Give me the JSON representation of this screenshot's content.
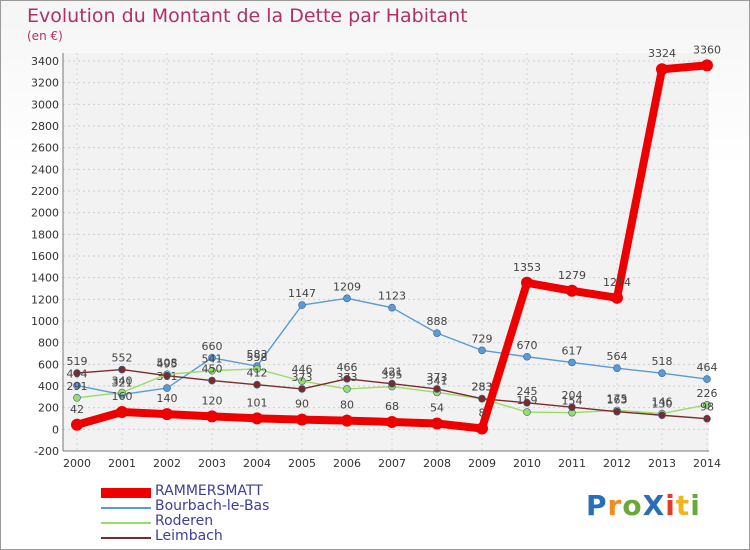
{
  "header": {
    "title": "Evolution du Montant de la Dette par Habitant",
    "subtitle": "(en €)"
  },
  "logo": {
    "text": "ProXiti"
  },
  "chart_data": {
    "type": "line",
    "title": "Evolution du Montant de la Dette par Habitant",
    "subtitle": "(en €)",
    "xlabel": "",
    "ylabel": "",
    "categories": [
      "2000",
      "2001",
      "2002",
      "2003",
      "2004",
      "2005",
      "2006",
      "2007",
      "2008",
      "2009",
      "2010",
      "2011",
      "2012",
      "2013",
      "2014"
    ],
    "ylim": [
      -200,
      3400
    ],
    "yticks": [
      -200,
      0,
      200,
      400,
      600,
      800,
      1000,
      1200,
      1400,
      1600,
      1800,
      2000,
      2200,
      2400,
      2600,
      2800,
      3000,
      3200,
      3400
    ],
    "grid": true,
    "legend_position": "bottom-left",
    "series": [
      {
        "name": "Bourbach-le-Bas",
        "color": "#5b9bd5",
        "values": [
          404,
          321,
          381,
          660,
          583,
          1147,
          1209,
          1123,
          888,
          729,
          670,
          617,
          564,
          518,
          464
        ],
        "labels": [
          "404",
          "321",
          "381",
          "660",
          "583",
          "1147",
          "1209",
          "1123",
          "888",
          "729",
          "670",
          "617",
          "564",
          "518",
          "464"
        ]
      },
      {
        "name": "Roderen",
        "color": "#99dd66",
        "values": [
          291,
          340,
          508,
          541,
          558,
          446,
          373,
          395,
          341,
          283,
          159,
          154,
          175,
          146,
          226
        ],
        "labels": [
          "291",
          "340",
          "508",
          "541",
          "558",
          "446",
          "373",
          "395",
          "341",
          "283",
          "159",
          "154",
          "175",
          "146",
          "226"
        ]
      },
      {
        "name": "Leimbach",
        "color": "#7a2c2c",
        "values": [
          519,
          552,
          495,
          450,
          412,
          373,
          466,
          421,
          373,
          283,
          245,
          204,
          163,
          130,
          98
        ],
        "labels": [
          "519",
          "552",
          "495",
          "450",
          "412",
          "373",
          "466",
          "421",
          "373",
          "283",
          "245",
          "204",
          "163",
          "130",
          "98"
        ]
      },
      {
        "name": "RAMMERSMATT",
        "color": "#ee0000",
        "values": [
          42,
          160,
          140,
          120,
          101,
          90,
          80,
          68,
          54,
          8,
          1353,
          1279,
          1214,
          3324,
          3360
        ],
        "labels": [
          "42",
          "160",
          "140",
          "120",
          "101",
          "90",
          "80",
          "68",
          "54",
          "8",
          "1353",
          "1279",
          "1214",
          "3324",
          "3360"
        ]
      }
    ]
  },
  "legend": {
    "items": [
      {
        "label": "RAMMERSMATT",
        "color": "#ee0000",
        "thick": true
      },
      {
        "label": "Bourbach-le-Bas",
        "color": "#5b9bd5",
        "thick": false
      },
      {
        "label": "Roderen",
        "color": "#99dd66",
        "thick": false
      },
      {
        "label": "Leimbach",
        "color": "#7a2c2c",
        "thick": false
      }
    ]
  }
}
